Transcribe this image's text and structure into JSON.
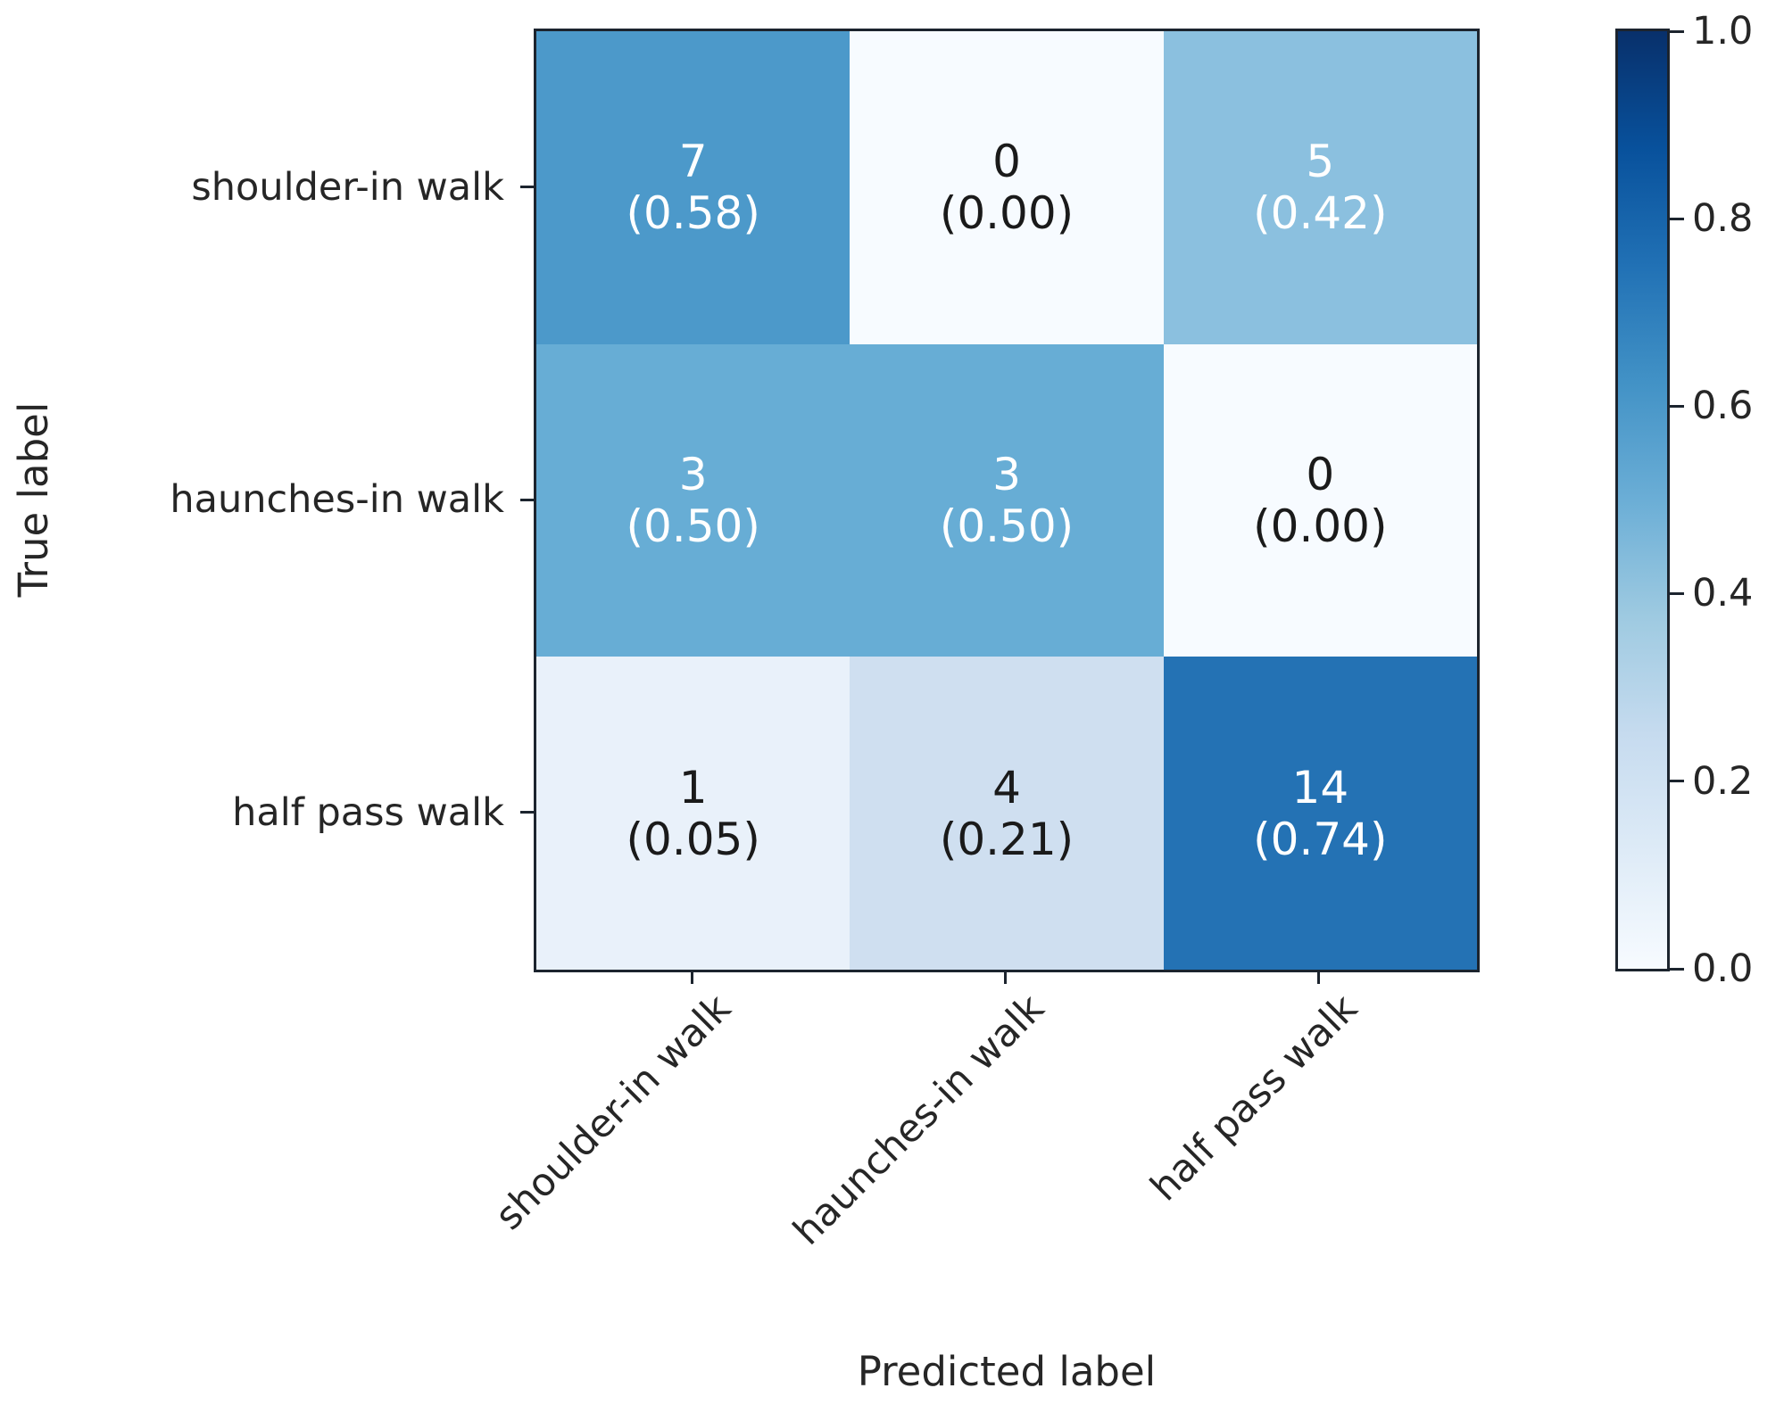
{
  "chart_data": {
    "type": "heatmap",
    "colormap": "Blues",
    "title": "",
    "xlabel": "Predicted label",
    "ylabel": "True label",
    "x_tick_labels": [
      "shoulder-in walk",
      "haunches-in walk",
      "half pass walk"
    ],
    "y_tick_labels": [
      "shoulder-in walk",
      "haunches-in walk",
      "half pass walk"
    ],
    "counts": [
      [
        7,
        0,
        5
      ],
      [
        3,
        3,
        0
      ],
      [
        1,
        4,
        14
      ]
    ],
    "proportions": [
      [
        0.58,
        0.0,
        0.42
      ],
      [
        0.5,
        0.5,
        0.0
      ],
      [
        0.05,
        0.21,
        0.74
      ]
    ],
    "cells": [
      {
        "count": "7",
        "prop": "(0.58)",
        "bg": "#4c99ca",
        "fg": "#ffffff"
      },
      {
        "count": "0",
        "prop": "(0.00)",
        "bg": "#f7fbff",
        "fg": "#1a1a1a"
      },
      {
        "count": "5",
        "prop": "(0.42)",
        "bg": "#8bc0df",
        "fg": "#ffffff"
      },
      {
        "count": "3",
        "prop": "(0.50)",
        "bg": "#67add5",
        "fg": "#ffffff"
      },
      {
        "count": "3",
        "prop": "(0.50)",
        "bg": "#67add5",
        "fg": "#ffffff"
      },
      {
        "count": "0",
        "prop": "(0.00)",
        "bg": "#f7fbff",
        "fg": "#1a1a1a"
      },
      {
        "count": "1",
        "prop": "(0.05)",
        "bg": "#e9f1fa",
        "fg": "#1a1a1a"
      },
      {
        "count": "4",
        "prop": "(0.21)",
        "bg": "#cfdff0",
        "fg": "#1a1a1a"
      },
      {
        "count": "14",
        "prop": "(0.74)",
        "bg": "#2472b4",
        "fg": "#ffffff"
      }
    ],
    "colorbar": {
      "min": 0.0,
      "max": 1.0,
      "ticks": [
        "1.0",
        "0.8",
        "0.6",
        "0.4",
        "0.2",
        "0.0"
      ],
      "gradient_stops": [
        "#f7fbff",
        "#deebf7",
        "#c6dbef",
        "#9ecae1",
        "#6baed6",
        "#4292c6",
        "#2171b5",
        "#08519c",
        "#08306b"
      ]
    },
    "axis_color": "#1c242e",
    "label_color": "#262626",
    "legend": "none",
    "grid": false
  }
}
